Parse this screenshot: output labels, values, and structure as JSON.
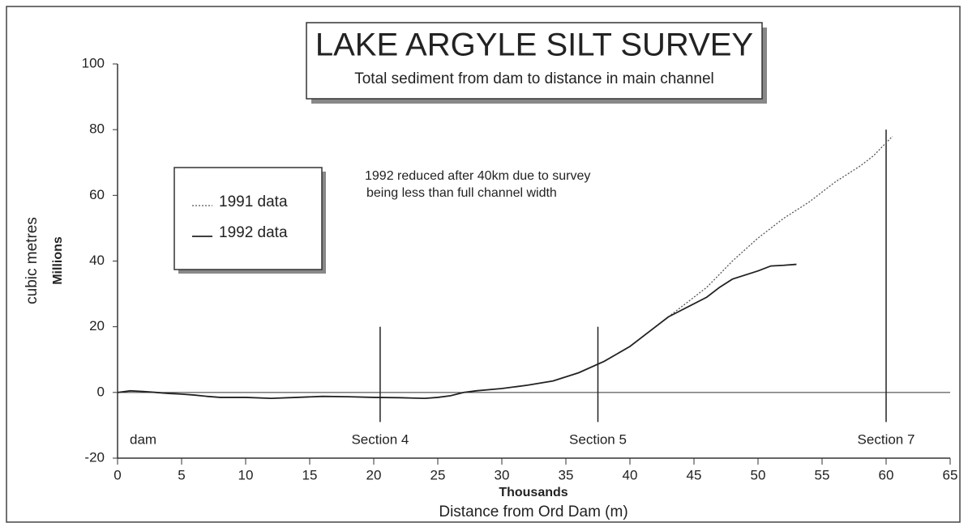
{
  "chart_data": {
    "type": "line",
    "title": "LAKE ARGYLE SILT SURVEY",
    "subtitle": "Total sediment from dam to distance in main channel",
    "annotation": [
      "1992 reduced after 40km  due to survey",
      "being less than full channel width"
    ],
    "xlabel": "Distance from Ord Dam (m)",
    "xlabel_units": "Thousands",
    "ylabel": "cubic metres",
    "ylabel_units": "Millions",
    "x": [
      0,
      1,
      2,
      3,
      4,
      5,
      6,
      7,
      8,
      10,
      12,
      14,
      16,
      18,
      20,
      22,
      24,
      25,
      26,
      27,
      28,
      30,
      32,
      34,
      36,
      38,
      40,
      42,
      43,
      44,
      46,
      47,
      48,
      50,
      51,
      52,
      53,
      54,
      56,
      58,
      59,
      60,
      60.5
    ],
    "series": [
      {
        "name": "1991 data",
        "color": "#555555",
        "dashed": true,
        "values": [
          null,
          null,
          null,
          null,
          null,
          null,
          null,
          null,
          null,
          null,
          null,
          null,
          null,
          null,
          null,
          null,
          null,
          null,
          null,
          null,
          null,
          null,
          null,
          null,
          null,
          null,
          null,
          20,
          23,
          26,
          32,
          36,
          40,
          47,
          50,
          53,
          55.5,
          58,
          64,
          69,
          72,
          76,
          78
        ]
      },
      {
        "name": "1992 data",
        "color": "#222222",
        "dashed": false,
        "values": [
          0,
          0.5,
          0.3,
          0,
          -0.3,
          -0.5,
          -0.8,
          -1.2,
          -1.5,
          -1.5,
          -1.8,
          -1.5,
          -1.2,
          -1.3,
          -1.5,
          -1.6,
          -1.8,
          -1.5,
          -1,
          0,
          0.5,
          1.2,
          2.2,
          3.5,
          6,
          9.5,
          14,
          20,
          23,
          25,
          29,
          32,
          34.5,
          37,
          38.5,
          38.7,
          39,
          null,
          null,
          null,
          null,
          null,
          null
        ]
      }
    ],
    "sections": [
      {
        "label": "dam",
        "x": 0,
        "top": null,
        "bottom": null
      },
      {
        "label": "Section 4",
        "x": 20.5,
        "top": 20,
        "bottom": -9
      },
      {
        "label": "Section 5",
        "x": 37.5,
        "top": 20,
        "bottom": -9
      },
      {
        "label": "Section 7",
        "x": 60,
        "top": 80,
        "bottom": -9
      }
    ],
    "xlim": [
      0,
      65
    ],
    "xticks": [
      0,
      5,
      10,
      15,
      20,
      25,
      30,
      35,
      40,
      45,
      50,
      55,
      60,
      65
    ],
    "ylim": [
      -20,
      100
    ],
    "yticks": [
      -20,
      0,
      20,
      40,
      60,
      80,
      100
    ],
    "zero_line": true
  }
}
